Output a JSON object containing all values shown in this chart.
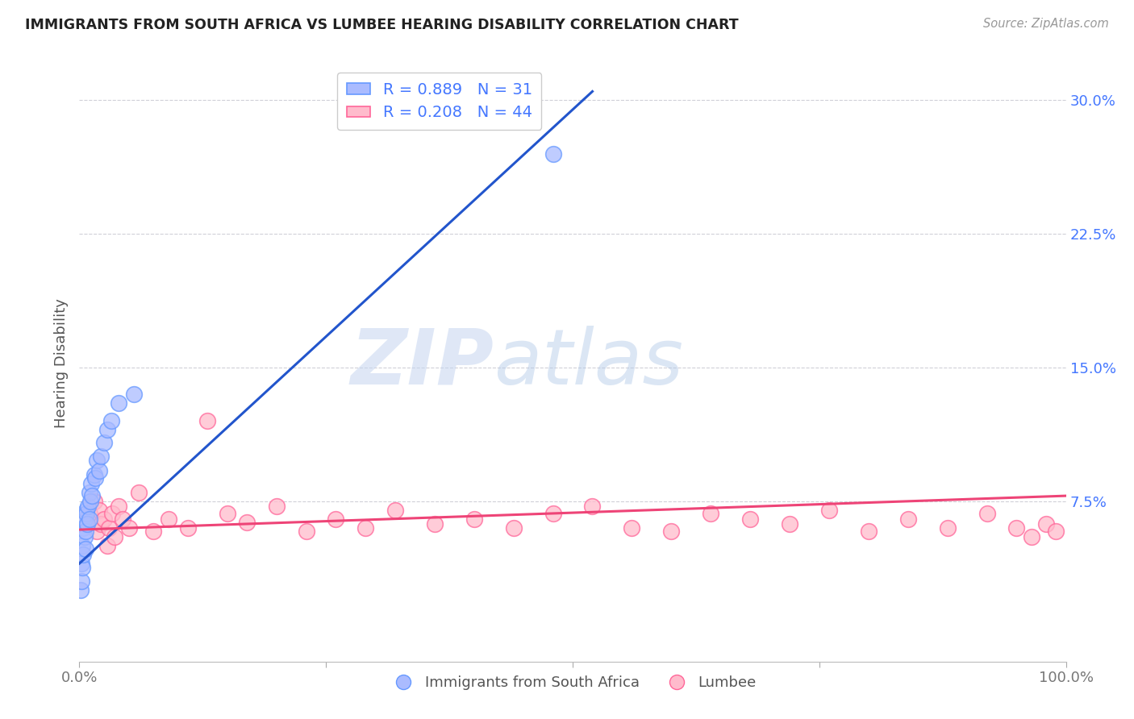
{
  "title": "IMMIGRANTS FROM SOUTH AFRICA VS LUMBEE HEARING DISABILITY CORRELATION CHART",
  "source": "Source: ZipAtlas.com",
  "ylabel": "Hearing Disability",
  "xlabel": "",
  "xlim": [
    0,
    1.0
  ],
  "ylim": [
    -0.015,
    0.32
  ],
  "yticks": [
    0.075,
    0.15,
    0.225,
    0.3
  ],
  "ytick_labels": [
    "7.5%",
    "15.0%",
    "22.5%",
    "30.0%"
  ],
  "xticks": [
    0.0,
    0.25,
    0.5,
    0.75,
    1.0
  ],
  "xtick_labels": [
    "0.0%",
    "",
    "",
    "",
    "100.0%"
  ],
  "background_color": "#ffffff",
  "grid_color": "#d0d0d8",
  "blue_color": "#6699ff",
  "blue_fill": "#aabbff",
  "pink_color": "#ff6699",
  "pink_fill": "#ffbbcc",
  "R_blue": 0.889,
  "N_blue": 31,
  "R_pink": 0.208,
  "N_pink": 44,
  "legend_label_blue": "Immigrants from South Africa",
  "legend_label_pink": "Lumbee",
  "watermark_ZIP": "ZIP",
  "watermark_atlas": "atlas",
  "blue_line_x": [
    0.0,
    0.52
  ],
  "blue_line_y": [
    0.04,
    0.305
  ],
  "pink_line_x": [
    0.0,
    1.0
  ],
  "pink_line_y": [
    0.059,
    0.078
  ],
  "blue_scatter_x": [
    0.001,
    0.002,
    0.002,
    0.003,
    0.003,
    0.004,
    0.004,
    0.005,
    0.005,
    0.006,
    0.006,
    0.007,
    0.007,
    0.008,
    0.009,
    0.01,
    0.01,
    0.011,
    0.012,
    0.013,
    0.015,
    0.016,
    0.018,
    0.02,
    0.022,
    0.025,
    0.028,
    0.032,
    0.04,
    0.055,
    0.48
  ],
  "blue_scatter_y": [
    0.025,
    0.03,
    0.04,
    0.038,
    0.05,
    0.045,
    0.06,
    0.055,
    0.065,
    0.048,
    0.058,
    0.07,
    0.068,
    0.062,
    0.072,
    0.065,
    0.08,
    0.075,
    0.085,
    0.078,
    0.09,
    0.088,
    0.098,
    0.092,
    0.1,
    0.108,
    0.115,
    0.12,
    0.13,
    0.135,
    0.27
  ],
  "pink_scatter_x": [
    0.01,
    0.015,
    0.018,
    0.02,
    0.022,
    0.025,
    0.028,
    0.03,
    0.033,
    0.036,
    0.04,
    0.044,
    0.05,
    0.06,
    0.075,
    0.09,
    0.11,
    0.13,
    0.15,
    0.17,
    0.2,
    0.23,
    0.26,
    0.29,
    0.32,
    0.36,
    0.4,
    0.44,
    0.48,
    0.52,
    0.56,
    0.6,
    0.64,
    0.68,
    0.72,
    0.76,
    0.8,
    0.84,
    0.88,
    0.92,
    0.95,
    0.965,
    0.98,
    0.99
  ],
  "pink_scatter_y": [
    0.068,
    0.075,
    0.058,
    0.07,
    0.062,
    0.065,
    0.05,
    0.06,
    0.068,
    0.055,
    0.072,
    0.065,
    0.06,
    0.08,
    0.058,
    0.065,
    0.06,
    0.12,
    0.068,
    0.063,
    0.072,
    0.058,
    0.065,
    0.06,
    0.07,
    0.062,
    0.065,
    0.06,
    0.068,
    0.072,
    0.06,
    0.058,
    0.068,
    0.065,
    0.062,
    0.07,
    0.058,
    0.065,
    0.06,
    0.068,
    0.06,
    0.055,
    0.062,
    0.058
  ]
}
